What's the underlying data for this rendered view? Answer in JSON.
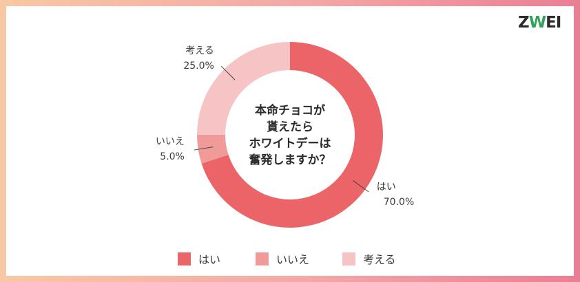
{
  "brand": {
    "logo_text": "ZWEI"
  },
  "chart_data": {
    "type": "pie",
    "donut": true,
    "title": "本命チョコが貰えたらホワイトデーは奮発しますか？",
    "title_lines": [
      "本命チョコが",
      "貰えたら",
      "ホワイトデーは",
      "奮発しますか？"
    ],
    "categories": [
      "はい",
      "いいえ",
      "考える"
    ],
    "values": [
      70.0,
      5.0,
      25.0
    ],
    "value_labels": [
      "70.0%",
      "5.0%",
      "25.0%"
    ],
    "colors": [
      "#eb6468",
      "#f09a9a",
      "#f6c4c4"
    ],
    "legend": "bottom"
  }
}
